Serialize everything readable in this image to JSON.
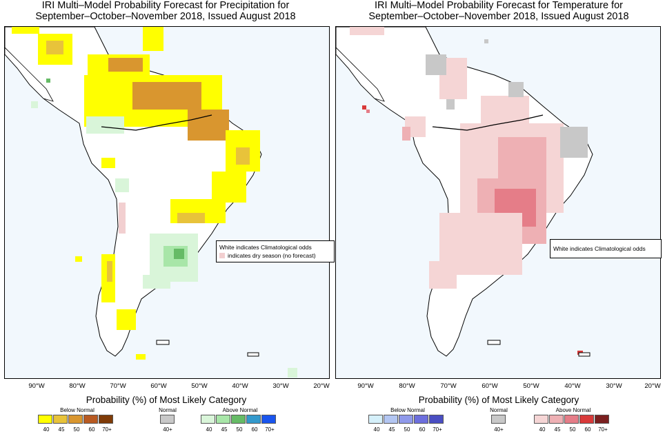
{
  "panels": [
    {
      "title_line1": "IRI Multi–Model Probability Forecast for Precipitation for",
      "title_line2": "September–October–November 2018, Issued August 2018",
      "note_line1": "White indicates Climatological odds",
      "note_line2": "indicates dry season (no forecast)"
    },
    {
      "title_line1": "IRI Multi–Model Probability Forecast for Temperature for",
      "title_line2": "September–October–November 2018, Issued August 2018",
      "note_line1": "White indicates Climatological odds"
    }
  ],
  "lon_labels": [
    "90°W",
    "80°W",
    "70°W",
    "60°W",
    "50°W",
    "40°W",
    "30°W",
    "20°W"
  ],
  "legend_heading": "Probability (%) of Most Likely Category",
  "precip_legend": {
    "below": {
      "label": "Below Normal",
      "ticks": [
        "40",
        "45",
        "50",
        "60",
        "70+"
      ],
      "colors": [
        "#ffff00",
        "#e8c33a",
        "#d9962f",
        "#b85a22",
        "#7f3b08"
      ]
    },
    "normal": {
      "label": "Normal",
      "ticks": [
        "40+"
      ],
      "colors": [
        "#c8c8c8"
      ]
    },
    "above": {
      "label": "Above Normal",
      "ticks": [
        "40",
        "45",
        "50",
        "60",
        "70+"
      ],
      "colors": [
        "#d9f5d9",
        "#a8e6a8",
        "#66bb66",
        "#3399cc",
        "#1a55ee"
      ]
    }
  },
  "temp_legend": {
    "below": {
      "label": "Below Normal",
      "ticks": [
        "40",
        "45",
        "50",
        "60",
        "70+"
      ],
      "colors": [
        "#d5f0fa",
        "#b3c6f2",
        "#8f99ea",
        "#6d6fdd",
        "#4a4ec2"
      ]
    },
    "normal": {
      "label": "Normal",
      "ticks": [
        "40+"
      ],
      "colors": [
        "#c8c8c8"
      ]
    },
    "above": {
      "label": "Above Normal",
      "ticks": [
        "40",
        "45",
        "50",
        "60",
        "70+"
      ],
      "colors": [
        "#f5d5d5",
        "#eeb0b4",
        "#e57d88",
        "#d93a3a",
        "#7a1f1f"
      ]
    }
  },
  "colors": {
    "ocean": "#f2f8fd",
    "land": "#ffffff",
    "dry_season": "#f2cfd0"
  }
}
